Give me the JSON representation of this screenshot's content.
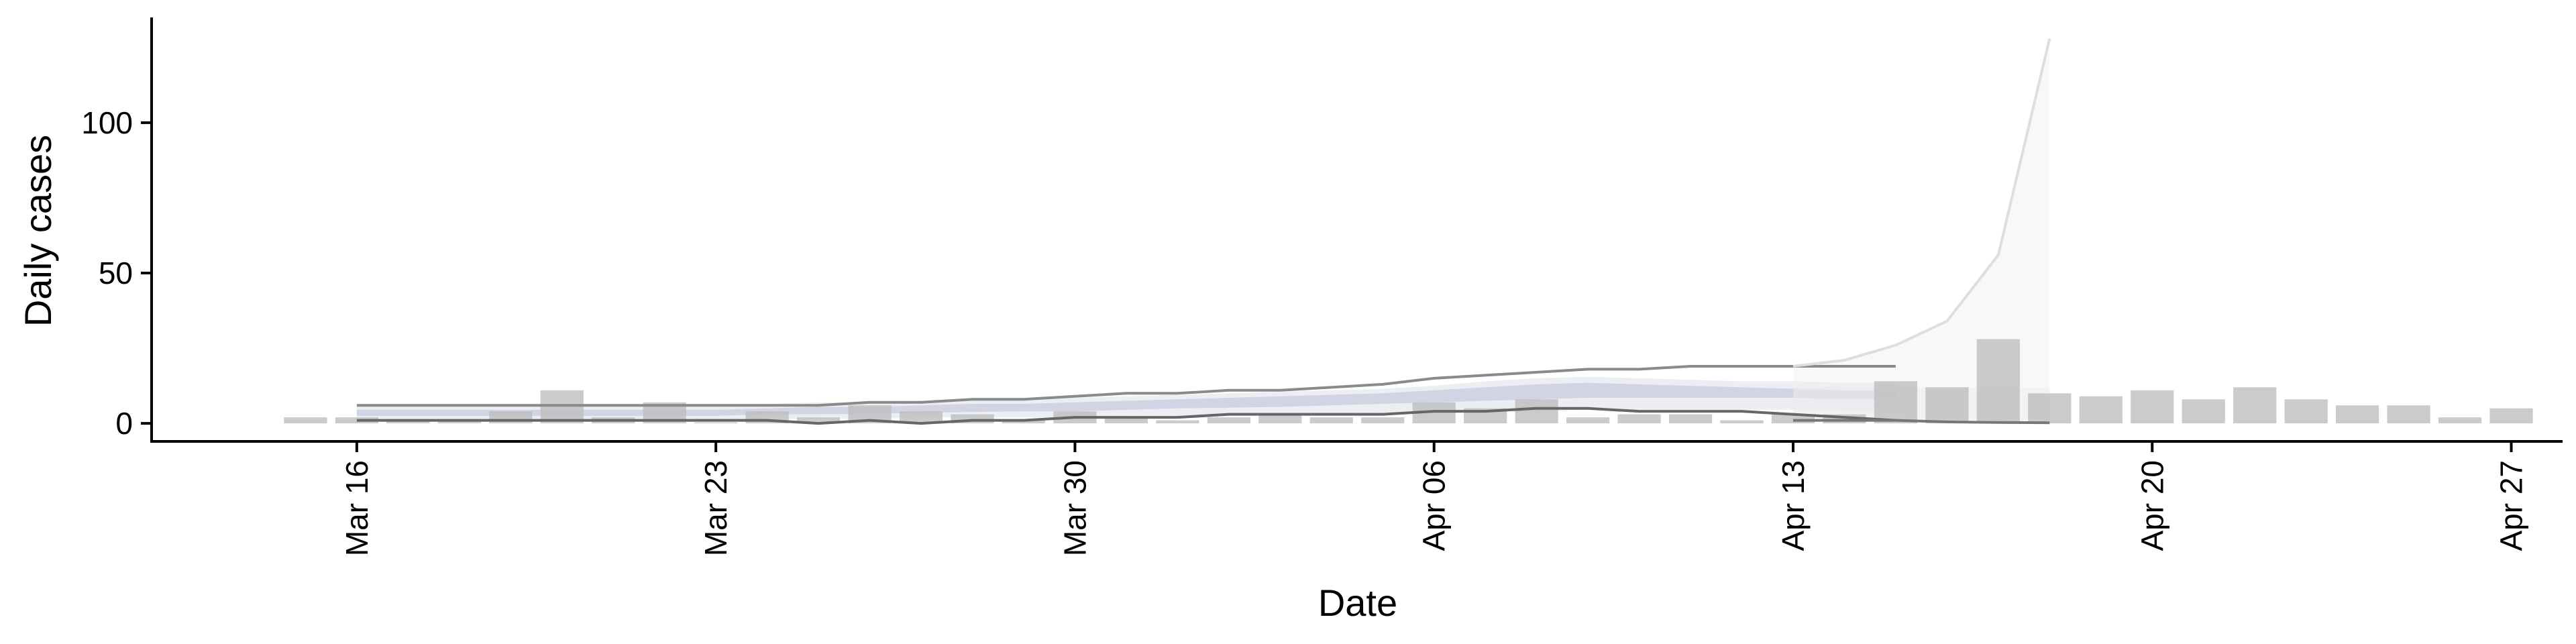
{
  "chart_data": {
    "type": "bar",
    "title": "",
    "xlabel": "Date",
    "ylabel": "Daily cases",
    "x_start": "2020-03-15",
    "xlim": [
      "2020-03-12",
      "2020-04-28"
    ],
    "ylim": [
      -6,
      135
    ],
    "x_ticks": [
      {
        "date": "2020-03-16",
        "label": "Mar 16"
      },
      {
        "date": "2020-03-23",
        "label": "Mar 23"
      },
      {
        "date": "2020-03-30",
        "label": "Mar 30"
      },
      {
        "date": "2020-04-06",
        "label": "Apr 06"
      },
      {
        "date": "2020-04-13",
        "label": "Apr 13"
      },
      {
        "date": "2020-04-20",
        "label": "Apr 20"
      },
      {
        "date": "2020-04-27",
        "label": "Apr 27"
      }
    ],
    "y_ticks": [
      {
        "value": 0,
        "label": "0"
      },
      {
        "value": 50,
        "label": "50"
      },
      {
        "value": 100,
        "label": "100"
      }
    ],
    "grid": false,
    "legend": "none",
    "dates": [
      "2020-03-15",
      "2020-03-16",
      "2020-03-17",
      "2020-03-18",
      "2020-03-19",
      "2020-03-20",
      "2020-03-21",
      "2020-03-22",
      "2020-03-23",
      "2020-03-24",
      "2020-03-25",
      "2020-03-26",
      "2020-03-27",
      "2020-03-28",
      "2020-03-29",
      "2020-03-30",
      "2020-03-31",
      "2020-04-01",
      "2020-04-02",
      "2020-04-03",
      "2020-04-04",
      "2020-04-05",
      "2020-04-06",
      "2020-04-07",
      "2020-04-08",
      "2020-04-09",
      "2020-04-10",
      "2020-04-11",
      "2020-04-12",
      "2020-04-13",
      "2020-04-14",
      "2020-04-15",
      "2020-04-16",
      "2020-04-17",
      "2020-04-18",
      "2020-04-19",
      "2020-04-20",
      "2020-04-21",
      "2020-04-22",
      "2020-04-23",
      "2020-04-24",
      "2020-04-25",
      "2020-04-26",
      "2020-04-27"
    ],
    "values": [
      2,
      2,
      1,
      1,
      4,
      11,
      2,
      7,
      0,
      4,
      2,
      6,
      4,
      3,
      1,
      4,
      2,
      1,
      2,
      3,
      2,
      2,
      7,
      5,
      8,
      2,
      3,
      3,
      1,
      3,
      3,
      14,
      12,
      28,
      10,
      9,
      11,
      8,
      12,
      8,
      6,
      6,
      2,
      5
    ],
    "ribbons": [
      {
        "fill": "#a6acc8",
        "opacity": 0.45,
        "start": "2020-03-16",
        "lower": [
          2.5,
          2.5,
          2.5,
          2.5,
          2.5,
          2.5,
          2.5,
          2.5,
          3,
          3,
          3.2,
          3.5,
          3.8,
          4,
          4,
          4.5,
          5,
          5.2,
          5.5,
          6,
          6.5,
          7,
          7.5,
          8,
          8.5,
          8.5,
          8.5,
          8.5,
          8.5,
          8,
          8
        ],
        "upper": [
          4.5,
          4.5,
          4.5,
          4.5,
          4.5,
          4.5,
          4.5,
          4.5,
          5,
          5.5,
          5.5,
          6,
          6.5,
          6.5,
          7,
          7.5,
          8,
          8.5,
          9,
          9.5,
          10,
          11,
          12,
          13,
          13.5,
          13,
          12.5,
          12,
          11.5,
          11,
          11
        ]
      },
      {
        "fill": "#c3c7d9",
        "opacity": 0.3,
        "start": "2020-03-16",
        "lower": [
          1,
          1,
          1,
          1,
          1,
          1,
          1,
          1,
          1.5,
          1.5,
          1.5,
          2,
          2,
          2,
          2,
          2.5,
          2.5,
          3,
          3,
          3,
          3.5,
          3.5,
          4,
          4,
          4.5,
          4.5,
          4.5,
          4.5,
          4.5,
          4,
          4
        ],
        "upper": [
          6,
          6,
          6,
          6,
          6,
          6,
          6,
          6,
          6.5,
          7,
          7,
          7.5,
          8,
          8,
          8.5,
          9,
          9.5,
          10,
          10.5,
          11,
          11.5,
          12.5,
          14,
          15,
          15.5,
          15,
          14.5,
          14,
          14,
          13.5,
          13.5
        ]
      },
      {
        "fill": "#dcdfe9",
        "opacity": 0.35,
        "start": "2020-04-13",
        "lower": [
          2.5,
          2.2,
          2,
          1.5,
          1.2,
          1
        ],
        "upper": [
          12,
          12,
          12,
          12,
          12,
          12
        ]
      },
      {
        "fill": "#efefef",
        "opacity": 0.45,
        "start": "2020-04-13",
        "lower": [
          0.5,
          0.5,
          0.5,
          0.5,
          0.5,
          0.5
        ],
        "upper": [
          19,
          21,
          26,
          34,
          56,
          128
        ]
      }
    ],
    "lines": [
      {
        "color": "#8a8a8a",
        "width": 4,
        "start": "2020-03-16",
        "values": [
          6,
          6,
          6,
          6,
          6,
          6,
          6,
          6,
          6,
          6,
          7,
          7,
          8,
          8,
          9,
          10,
          10,
          11,
          11,
          12,
          13,
          15,
          16,
          17,
          18,
          18,
          19,
          19,
          19,
          19,
          19
        ]
      },
      {
        "color": "#666666",
        "width": 4,
        "start": "2020-03-16",
        "values": [
          1,
          1,
          1,
          1,
          1,
          1,
          1,
          1,
          1,
          0,
          1,
          0,
          1,
          1,
          2,
          2,
          2,
          3,
          3,
          3,
          3,
          4,
          4,
          5,
          5,
          4,
          4,
          4,
          3,
          2,
          1
        ]
      },
      {
        "color": "#dedede",
        "width": 4,
        "start": "2020-04-13",
        "values": [
          19,
          21,
          26,
          34,
          56,
          128
        ]
      },
      {
        "color": "#777777",
        "width": 4,
        "start": "2020-04-13",
        "values": [
          1,
          1,
          1,
          0.5,
          0.3,
          0.2
        ]
      }
    ]
  }
}
